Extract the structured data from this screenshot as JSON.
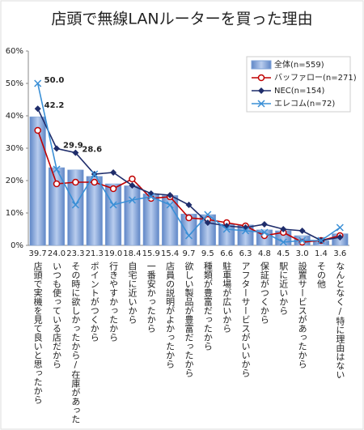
{
  "chart_data": {
    "type": "bar",
    "title": "店頭で無線LANルーターを買った理由",
    "categories": [
      "店頭で実機を見て良いと思ったから",
      "いつも使っている店だから",
      "その時に欲しかったから/在庫があった",
      "ポイントがつくから",
      "行きやすかったから",
      "自宅に近いから",
      "一番安かったから",
      "店員の説明がよかったから",
      "欲しい製品が豊富だったから",
      "種類が豊富だったから",
      "駐車場が広いから",
      "アフターサービスがいいから",
      "保証がつくから",
      "駅に近いから",
      "設置サービスがあったから",
      "その他",
      "なんとなく/特に理由はない"
    ],
    "series": [
      {
        "name": "全体(n=559)",
        "type": "bar",
        "color": "#7fa3d8",
        "values": [
          39.7,
          24.0,
          23.3,
          21.3,
          19.0,
          18.4,
          15.9,
          15.4,
          9.7,
          9.5,
          6.6,
          6.3,
          4.8,
          4.5,
          3.0,
          1.4,
          3.6
        ],
        "value_labels": [
          "39.7",
          "24.0",
          "23.3",
          "21.3",
          "19.0",
          "18.4",
          "15.9",
          "15.4",
          "9.7",
          "9.5",
          "6.6",
          "6.3",
          "4.8",
          "4.5",
          "3.0",
          "1.4",
          "3.6"
        ]
      },
      {
        "name": "バッファロー(n=271)",
        "type": "line",
        "marker": "circle",
        "color": "#c00000",
        "values": [
          35.5,
          19,
          19.5,
          19.5,
          17.5,
          20.5,
          14.5,
          15,
          8.5,
          8,
          7,
          6,
          3,
          4,
          1,
          1.5,
          3
        ]
      },
      {
        "name": "NEC(n=154)",
        "type": "line",
        "marker": "diamond",
        "color": "#1f2d6b",
        "values": [
          42.2,
          29.9,
          28.6,
          22,
          22.5,
          18.5,
          16,
          15.5,
          12.5,
          7,
          6,
          5.5,
          6.5,
          5,
          4.5,
          1.5,
          2.5
        ],
        "value_labels": [
          "42.2",
          "29.9",
          "28.6",
          null,
          null,
          null,
          null,
          null,
          null,
          null,
          null,
          null,
          null,
          null,
          null,
          null,
          null
        ]
      },
      {
        "name": "エレコム(n=72)",
        "type": "line",
        "marker": "x",
        "color": "#3a8fd6",
        "values": [
          50.0,
          23.5,
          12.5,
          22,
          12.5,
          14,
          15,
          12.5,
          3,
          9.5,
          5,
          4.5,
          4,
          1,
          1.5,
          1.5,
          5.5
        ],
        "value_labels": [
          "50.0",
          null,
          null,
          null,
          null,
          null,
          null,
          null,
          null,
          null,
          null,
          null,
          null,
          null,
          null,
          null,
          null
        ]
      }
    ],
    "ylim": [
      0,
      60
    ],
    "yticks": [
      {
        "value": 0,
        "label": "0%"
      },
      {
        "value": 10,
        "label": "10%"
      },
      {
        "value": 20,
        "label": "20%"
      },
      {
        "value": 30,
        "label": "30%"
      },
      {
        "value": 40,
        "label": "40%"
      },
      {
        "value": 50,
        "label": "50%"
      },
      {
        "value": 60,
        "label": "60%"
      }
    ],
    "legend": "top-right"
  }
}
